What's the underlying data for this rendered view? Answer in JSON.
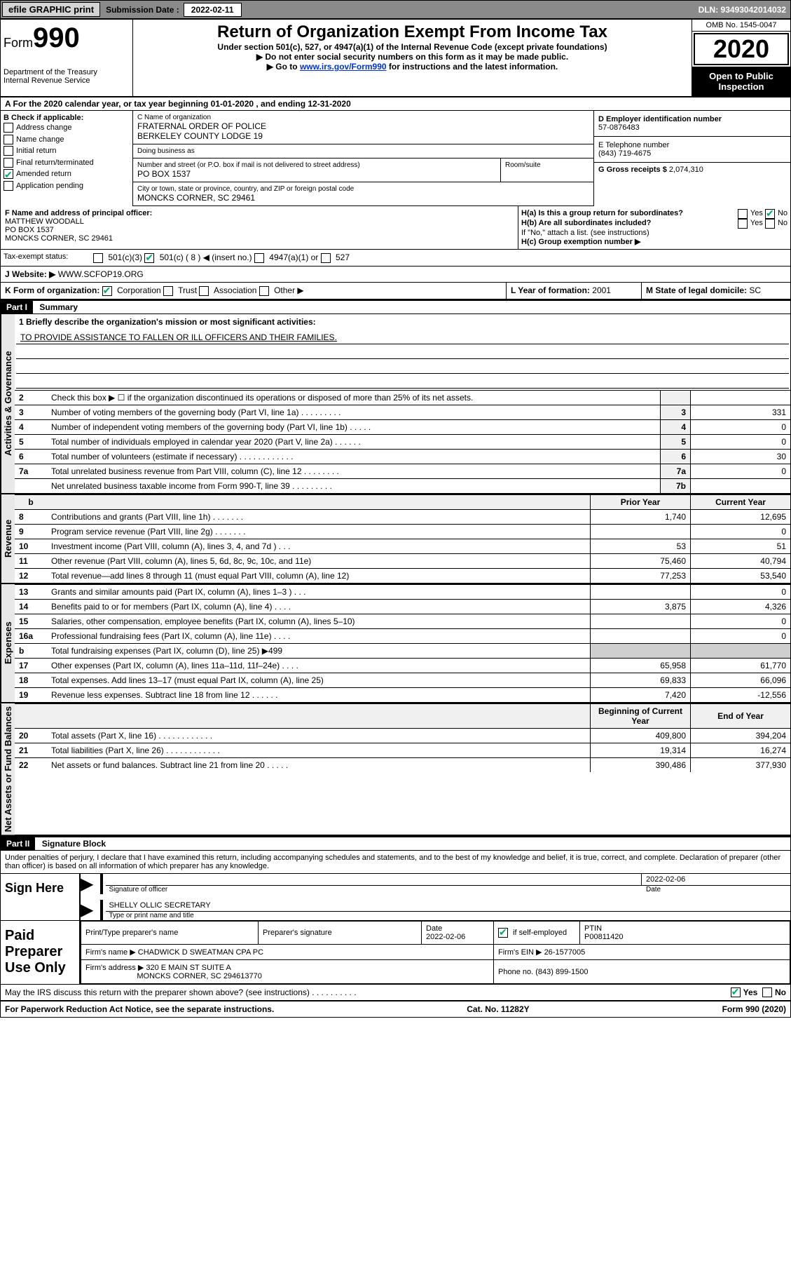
{
  "topbar": {
    "efile": "efile GRAPHIC print",
    "sub_label": "Submission Date :",
    "sub_date": "2022-02-11",
    "dln": "DLN: 93493042014032"
  },
  "header": {
    "form_word": "Form",
    "form_num": "990",
    "dept": "Department of the Treasury\nInternal Revenue Service",
    "title": "Return of Organization Exempt From Income Tax",
    "sub1": "Under section 501(c), 527, or 4947(a)(1) of the Internal Revenue Code (except private foundations)",
    "sub2": "▶ Do not enter social security numbers on this form as it may be made public.",
    "sub3_pre": "▶ Go to ",
    "sub3_link": "www.irs.gov/Form990",
    "sub3_post": " for instructions and the latest information.",
    "omb": "OMB No. 1545-0047",
    "year": "2020",
    "inspection": "Open to Public Inspection"
  },
  "lineA": "A   For the 2020 calendar year, or tax year beginning 01-01-2020    , and ending 12-31-2020",
  "checkB": {
    "hdr": "B Check if applicable:",
    "items": [
      "Address change",
      "Name change",
      "Initial return",
      "Final return/terminated",
      "Amended return",
      "Application pending"
    ],
    "checked_index": 4
  },
  "nameblock": {
    "c_label": "C Name of organization",
    "c_val": "FRATERNAL ORDER OF POLICE\nBERKELEY COUNTY LODGE 19",
    "dba_label": "Doing business as",
    "dba_val": "",
    "street_label": "Number and street (or P.O. box if mail is not delivered to street address)",
    "street_val": "PO BOX 1537",
    "room_label": "Room/suite",
    "city_label": "City or town, state or province, country, and ZIP or foreign postal code",
    "city_val": "MONCKS CORNER, SC  29461"
  },
  "rightcol": {
    "d_label": "D Employer identification number",
    "d_val": "57-0876483",
    "e_label": "E Telephone number",
    "e_val": "(843) 719-4675",
    "g_label": "G Gross receipts $",
    "g_val": "2,074,310"
  },
  "officer": {
    "f_label": "F Name and address of principal officer:",
    "name": "MATTHEW WOODALL",
    "addr1": "PO BOX 1537",
    "addr2": "MONCKS CORNER, SC  29461"
  },
  "h": {
    "ha": "H(a)  Is this a group return for subordinates?",
    "hb": "H(b)  Are all subordinates included?",
    "hb_note": "If \"No,\" attach a list. (see instructions)",
    "hc": "H(c)  Group exemption number ▶",
    "yes": "Yes",
    "no": "No"
  },
  "taxexempt": {
    "label": "Tax-exempt status:",
    "opts": [
      "501(c)(3)",
      "501(c) ( 8 ) ◀ (insert no.)",
      "4947(a)(1) or",
      "527"
    ],
    "checked_index": 1
  },
  "website": {
    "label": "J   Website: ▶",
    "val": "WWW.SCFOP19.ORG"
  },
  "formorg": {
    "label": "K Form of organization:",
    "opts": [
      "Corporation",
      "Trust",
      "Association",
      "Other ▶"
    ],
    "checked_index": 0
  },
  "yearform": {
    "label": "L Year of formation:",
    "val": "2001"
  },
  "domicile": {
    "label": "M State of legal domicile:",
    "val": "SC"
  },
  "part1": {
    "hdr": "Part I",
    "title": "Summary"
  },
  "mission": {
    "q": "1   Briefly describe the organization's mission or most significant activities:",
    "val": "TO PROVIDE ASSISTANCE TO FALLEN OR ILL OFFICERS AND THEIR FAMILIES."
  },
  "gov_lines": [
    {
      "n": "2",
      "text": "Check this box ▶ ☐  if the organization discontinued its operations or disposed of more than 25% of its net assets.",
      "box": "",
      "val": ""
    },
    {
      "n": "3",
      "text": "Number of voting members of the governing body (Part VI, line 1a)   .     .     .     .     .     .     .     .     .",
      "box": "3",
      "val": "331"
    },
    {
      "n": "4",
      "text": "Number of independent voting members of the governing body (Part VI, line 1b)   .     .     .     .     .",
      "box": "4",
      "val": "0"
    },
    {
      "n": "5",
      "text": "Total number of individuals employed in calendar year 2020 (Part V, line 2a)   .     .     .     .     .     .",
      "box": "5",
      "val": "0"
    },
    {
      "n": "6",
      "text": "Total number of volunteers (estimate if necessary)   .     .     .     .     .     .     .     .     .     .     .     .",
      "box": "6",
      "val": "30"
    },
    {
      "n": "7a",
      "text": "Total unrelated business revenue from Part VIII, column (C), line 12   .     .     .     .     .     .     .     .",
      "box": "7a",
      "val": "0"
    },
    {
      "n": "",
      "text": "Net unrelated business taxable income from Form 990-T, line 39   .     .     .     .     .     .     .     .     .",
      "box": "7b",
      "val": ""
    }
  ],
  "rev_hdr": {
    "b": "b",
    "prior": "Prior Year",
    "current": "Current Year"
  },
  "rev_lines": [
    {
      "n": "8",
      "text": "Contributions and grants (Part VIII, line 1h)   .     .     .     .     .     .     .",
      "p": "1,740",
      "c": "12,695"
    },
    {
      "n": "9",
      "text": "Program service revenue (Part VIII, line 2g)   .     .     .     .     .     .     .",
      "p": "",
      "c": "0"
    },
    {
      "n": "10",
      "text": "Investment income (Part VIII, column (A), lines 3, 4, and 7d )   .     .     .",
      "p": "53",
      "c": "51"
    },
    {
      "n": "11",
      "text": "Other revenue (Part VIII, column (A), lines 5, 6d, 8c, 9c, 10c, and 11e)",
      "p": "75,460",
      "c": "40,794"
    },
    {
      "n": "12",
      "text": "Total revenue—add lines 8 through 11 (must equal Part VIII, column (A), line 12)",
      "p": "77,253",
      "c": "53,540"
    }
  ],
  "exp_lines": [
    {
      "n": "13",
      "text": "Grants and similar amounts paid (Part IX, column (A), lines 1–3 )   .     .     .",
      "p": "",
      "c": "0"
    },
    {
      "n": "14",
      "text": "Benefits paid to or for members (Part IX, column (A), line 4)   .     .     .     .",
      "p": "3,875",
      "c": "4,326"
    },
    {
      "n": "15",
      "text": "Salaries, other compensation, employee benefits (Part IX, column (A), lines 5–10)",
      "p": "",
      "c": "0"
    },
    {
      "n": "16a",
      "text": "Professional fundraising fees (Part IX, column (A), line 11e)   .     .     .     .",
      "p": "",
      "c": "0"
    },
    {
      "n": "b",
      "text": "Total fundraising expenses (Part IX, column (D), line 25) ▶499",
      "p": "gray",
      "c": "gray"
    },
    {
      "n": "17",
      "text": "Other expenses (Part IX, column (A), lines 11a–11d, 11f–24e)   .     .     .     .",
      "p": "65,958",
      "c": "61,770"
    },
    {
      "n": "18",
      "text": "Total expenses. Add lines 13–17 (must equal Part IX, column (A), line 25)",
      "p": "69,833",
      "c": "66,096"
    },
    {
      "n": "19",
      "text": "Revenue less expenses. Subtract line 18 from line 12  .     .     .     .     .     .",
      "p": "7,420",
      "c": "-12,556"
    }
  ],
  "net_hdr": {
    "prior": "Beginning of Current Year",
    "current": "End of Year"
  },
  "net_lines": [
    {
      "n": "20",
      "text": "Total assets (Part X, line 16)   .     .     .     .     .     .     .     .     .     .     .     .",
      "p": "409,800",
      "c": "394,204"
    },
    {
      "n": "21",
      "text": "Total liabilities (Part X, line 26)   .     .     .     .     .     .     .     .     .     .     .     .",
      "p": "19,314",
      "c": "16,274"
    },
    {
      "n": "22",
      "text": "Net assets or fund balances. Subtract line 21 from line 20  .     .     .     .     .",
      "p": "390,486",
      "c": "377,930"
    }
  ],
  "side_labels": {
    "gov": "Activities & Governance",
    "rev": "Revenue",
    "exp": "Expenses",
    "net": "Net Assets or Fund Balances"
  },
  "part2": {
    "hdr": "Part II",
    "title": "Signature Block"
  },
  "penalties": "Under penalties of perjury, I declare that I have examined this return, including accompanying schedules and statements, and to the best of my knowledge and belief, it is true, correct, and complete. Declaration of preparer (other than officer) is based on all information of which preparer has any knowledge.",
  "sign": {
    "here": "Sign Here",
    "sig_officer_lbl": "Signature of officer",
    "date_lbl": "Date",
    "date_val": "2022-02-06",
    "name": "SHELLY OLLIC  SECRETARY",
    "name_lbl": "Type or print name and title"
  },
  "paid": {
    "here": "Paid Preparer Use Only",
    "h1": "Print/Type preparer's name",
    "h2": "Preparer's signature",
    "h3": "Date",
    "h3v": "2022-02-06",
    "h4": "Check ☑ if self-employed",
    "h5": "PTIN",
    "h5v": "P00811420",
    "firm_lbl": "Firm's name     ▶",
    "firm": "CHADWICK D SWEATMAN CPA PC",
    "ein_lbl": "Firm's EIN ▶",
    "ein": "26-1577005",
    "addr_lbl": "Firm's address ▶",
    "addr1": "320 E MAIN ST SUITE A",
    "addr2": "MONCKS CORNER, SC  294613770",
    "phone_lbl": "Phone no.",
    "phone": "(843) 899-1500"
  },
  "discuss": "May the IRS discuss this return with the preparer shown above? (see instructions)   .     .     .     .     .     .     .     .     .     .",
  "footer": {
    "left": "For Paperwork Reduction Act Notice, see the separate instructions.",
    "mid": "Cat. No. 11282Y",
    "right": "Form 990 (2020)"
  }
}
